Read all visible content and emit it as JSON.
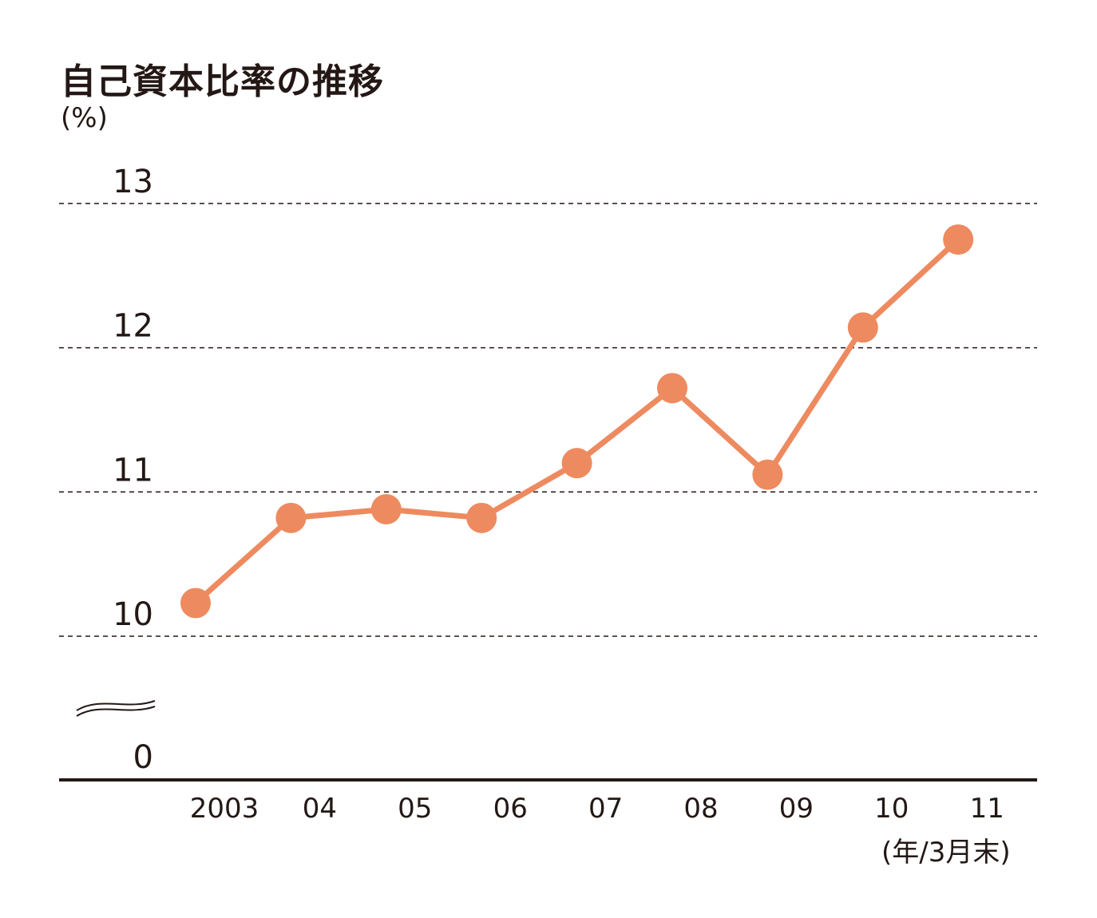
{
  "chart_data": {
    "type": "line",
    "title": "自己資本比率の推移",
    "ylabel": "(%)",
    "xlabel": "(年/3月末)",
    "categories": [
      "2003",
      "04",
      "05",
      "06",
      "07",
      "08",
      "09",
      "10",
      "11"
    ],
    "series": [
      {
        "values": [
          10.23,
          10.82,
          10.88,
          10.82,
          11.2,
          11.72,
          11.12,
          12.14,
          12.75
        ]
      }
    ],
    "y_ticks": [
      "13",
      "12",
      "11",
      "10",
      "0"
    ],
    "ylim": [
      10,
      13
    ],
    "y_axis_break": true,
    "grid": "dashed horizontal",
    "color": "#ee8a5f"
  }
}
